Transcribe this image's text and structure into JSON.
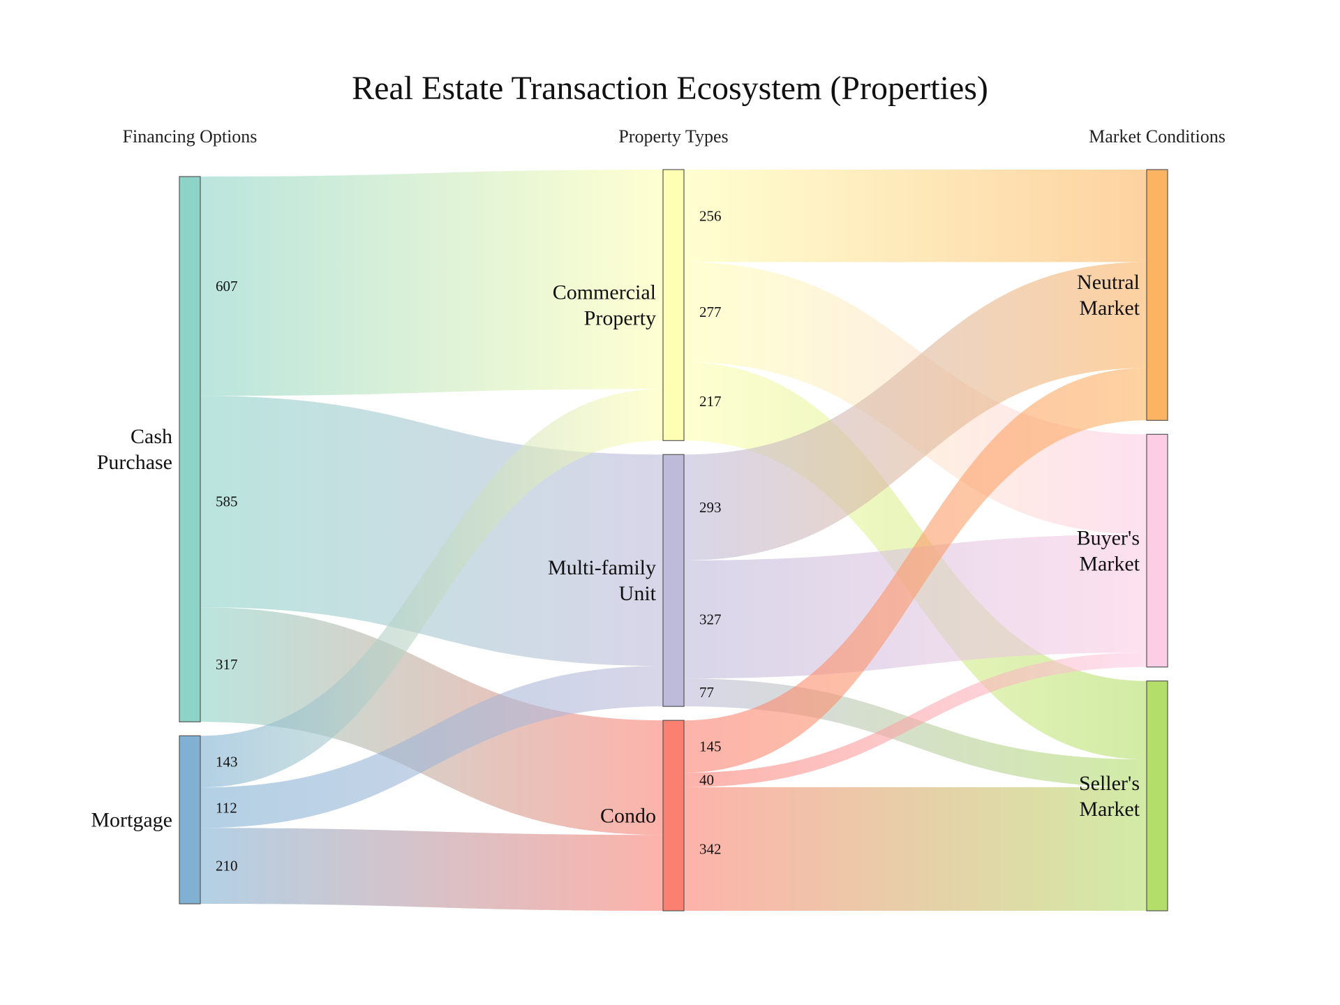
{
  "title": "Real Estate Transaction Ecosystem (Properties)",
  "columns": [
    "Financing Options",
    "Property Types",
    "Market Conditions"
  ],
  "nodes": [
    {
      "id": "cash",
      "label": [
        "Cash",
        "Purchase"
      ],
      "column": 0,
      "color": "#8dd3c7"
    },
    {
      "id": "mortgage",
      "label": [
        "Mortgage"
      ],
      "column": 0,
      "color": "#80b1d3"
    },
    {
      "id": "commercial",
      "label": [
        "Commercial",
        "Property"
      ],
      "column": 1,
      "color": "#ffffb3"
    },
    {
      "id": "multifamily",
      "label": [
        "Multi-family",
        "Unit"
      ],
      "column": 1,
      "color": "#bebada"
    },
    {
      "id": "condo",
      "label": [
        "Condo"
      ],
      "column": 1,
      "color": "#fb8072"
    },
    {
      "id": "neutral",
      "label": [
        "Neutral",
        "Market"
      ],
      "column": 2,
      "color": "#fdb462"
    },
    {
      "id": "buyers",
      "label": [
        "Buyer's",
        "Market"
      ],
      "column": 2,
      "color": "#fccde5"
    },
    {
      "id": "sellers",
      "label": [
        "Seller's",
        "Market"
      ],
      "column": 2,
      "color": "#b3de69"
    }
  ],
  "links": [
    {
      "source": "cash",
      "target": "commercial",
      "value": 607
    },
    {
      "source": "cash",
      "target": "multifamily",
      "value": 585
    },
    {
      "source": "cash",
      "target": "condo",
      "value": 317
    },
    {
      "source": "mortgage",
      "target": "commercial",
      "value": 143
    },
    {
      "source": "mortgage",
      "target": "multifamily",
      "value": 112
    },
    {
      "source": "mortgage",
      "target": "condo",
      "value": 210
    },
    {
      "source": "commercial",
      "target": "neutral",
      "value": 256
    },
    {
      "source": "commercial",
      "target": "buyers",
      "value": 277
    },
    {
      "source": "commercial",
      "target": "sellers",
      "value": 217
    },
    {
      "source": "multifamily",
      "target": "neutral",
      "value": 293
    },
    {
      "source": "multifamily",
      "target": "buyers",
      "value": 327
    },
    {
      "source": "multifamily",
      "target": "sellers",
      "value": 77
    },
    {
      "source": "condo",
      "target": "neutral",
      "value": 145
    },
    {
      "source": "condo",
      "target": "buyers",
      "value": 40
    },
    {
      "source": "condo",
      "target": "sellers",
      "value": 342
    }
  ]
}
